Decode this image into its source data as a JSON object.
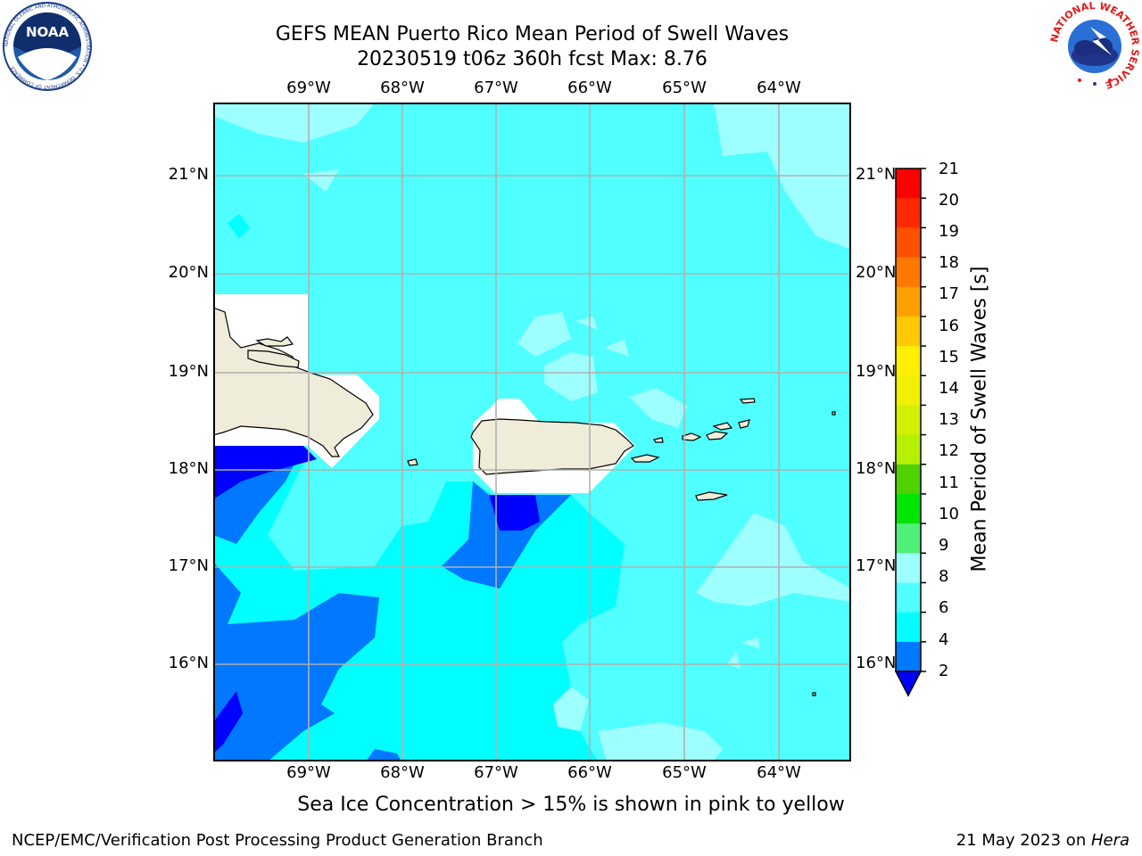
{
  "header": {
    "title_line1": "GEFS MEAN Puerto Rico Mean Period of Swell Waves",
    "title_line2": "20230519 t06z 360h fcst   Max: 8.76"
  },
  "logos": {
    "left": "NOAA",
    "left_ring_text": "NATIONAL OCEANIC AND ATMOSPHERIC ADMINISTRATION • U.S. DEPARTMENT OF COMMERCE",
    "right_ring_text": "NATIONAL WEATHER SERVICE"
  },
  "map": {
    "lon_labels": [
      "69°W",
      "68°W",
      "67°W",
      "66°W",
      "65°W",
      "64°W"
    ],
    "lat_labels": [
      "21°N",
      "20°N",
      "19°N",
      "18°N",
      "17°N",
      "16°N"
    ],
    "note": "Sea Ice Concentration > 15% is shown in pink to yellow",
    "land_color": "#efecda",
    "grid_color": "#b0b0b0"
  },
  "colorbar": {
    "label": "Mean Period of Swell Waves [s]",
    "ticks": [
      "21",
      "20",
      "19",
      "18",
      "17",
      "16",
      "15",
      "14",
      "13",
      "12",
      "11",
      "10",
      "9",
      "8",
      "6",
      "4",
      "2"
    ],
    "colors": [
      "#ff0000",
      "#ff2800",
      "#ff5000",
      "#ff7800",
      "#ffa000",
      "#ffc800",
      "#fff000",
      "#f0f000",
      "#d2f000",
      "#b4f000",
      "#50d200",
      "#00e600",
      "#50f078",
      "#9effff",
      "#50ffff",
      "#00ffff",
      "#0078ff"
    ],
    "extend_color": "#0000ff"
  },
  "footer": {
    "left": "NCEP/EMC/Verification Post Processing Product Generation Branch",
    "date": "21 May 2023 on ",
    "machine": "Hera"
  }
}
